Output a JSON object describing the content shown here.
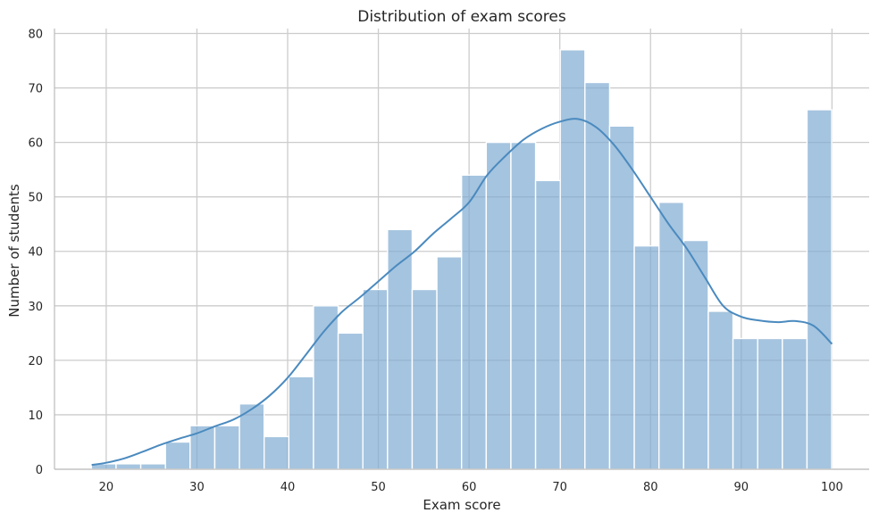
{
  "chart_data": {
    "type": "bar",
    "title": "Distribution of exam scores",
    "xlabel": "Exam score",
    "ylabel": "Number of students",
    "xlim": [
      14.3,
      104.1
    ],
    "ylim": [
      0,
      80.9
    ],
    "x_ticks": [
      20,
      30,
      40,
      50,
      60,
      70,
      80,
      90,
      100
    ],
    "y_ticks": [
      0,
      10,
      20,
      30,
      40,
      50,
      60,
      70,
      80
    ],
    "grid": true,
    "legend": "none",
    "bin_start": 18.37,
    "bin_width": 2.72,
    "values": [
      1,
      1,
      1,
      5,
      8,
      8,
      12,
      6,
      17,
      30,
      25,
      33,
      44,
      33,
      39,
      54,
      60,
      60,
      53,
      77,
      71,
      63,
      41,
      49,
      42,
      29,
      24,
      24,
      24,
      66
    ],
    "kde": {
      "x": [
        18.4,
        20,
        22,
        24,
        26,
        28,
        30,
        32,
        34,
        36,
        38,
        40,
        42,
        44,
        46,
        48,
        50,
        52,
        54,
        56,
        58,
        60,
        62,
        64,
        66,
        68,
        70,
        72,
        74,
        76,
        78,
        80,
        82,
        84,
        86,
        88,
        90,
        92,
        94,
        96,
        98,
        100
      ],
      "y": [
        0.8,
        1.2,
        2.0,
        3.2,
        4.5,
        5.6,
        6.6,
        7.9,
        9.1,
        11.0,
        13.5,
        16.8,
        21.0,
        25.3,
        28.9,
        31.6,
        34.5,
        37.4,
        40.0,
        43.2,
        46.0,
        49.0,
        54.0,
        57.5,
        60.5,
        62.5,
        63.8,
        64.3,
        62.8,
        59.5,
        55.0,
        50.0,
        45.0,
        40.5,
        35.2,
        30.0,
        28.0,
        27.3,
        27.0,
        27.2,
        26.3,
        23.0
      ]
    },
    "colors": {
      "bar": "#7fabd1",
      "line": "#4a8abf",
      "grid": "#cccccc",
      "text": "#262626"
    }
  }
}
